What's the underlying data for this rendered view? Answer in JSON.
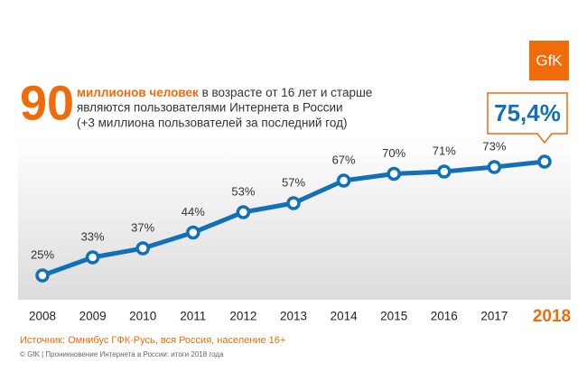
{
  "header": {
    "number": "90",
    "bold": "миллионов человек",
    "text": " в возрасте от 16 лет и старше",
    "line2": "являются пользователями Интернета в России",
    "line3": "(+3 миллиона пользователей за последний год)"
  },
  "logo": "GfK",
  "chart_data": {
    "type": "line",
    "categories": [
      "2008",
      "2009",
      "2010",
      "2011",
      "2012",
      "2013",
      "2014",
      "2015",
      "2016",
      "2017",
      "2018"
    ],
    "values": [
      25,
      33,
      37,
      44,
      53,
      57,
      67,
      70,
      71,
      73,
      75.4
    ],
    "value_labels": [
      "25%",
      "33%",
      "37%",
      "44%",
      "53%",
      "57%",
      "67%",
      "70%",
      "71%",
      "73%",
      "75,4%"
    ],
    "color": "#1170b8"
  },
  "source": "Источник: Омнибус ГФК-Русь, вся Россия, население 16+",
  "footer": "© GfK | Проникновение Интернета в России: итоги 2018 года"
}
